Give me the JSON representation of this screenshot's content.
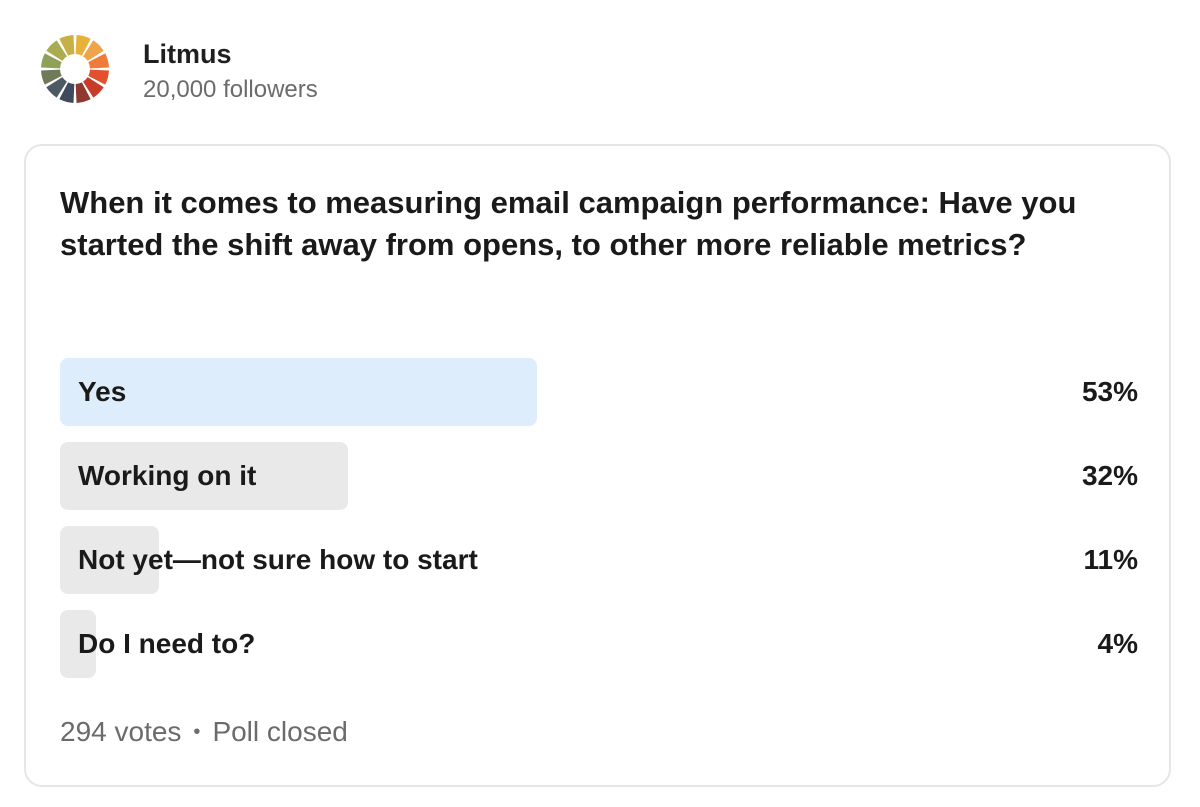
{
  "author": {
    "name": "Litmus",
    "followers": "20,000 followers",
    "logo_icon": "litmus-color-wheel-logo",
    "logo_colors": [
      "#e8b23a",
      "#f0a44a",
      "#ee7a3b",
      "#e3502e",
      "#c83a2a",
      "#8e3a31",
      "#3f4a5c",
      "#4e5a63",
      "#6e7a58",
      "#8fa05a",
      "#a9ad4f",
      "#c7b046"
    ]
  },
  "poll": {
    "question": "When it comes to measuring email campaign performance: Have you started the shift away from opens, to other more reliable metrics?",
    "options": [
      {
        "label": "Yes",
        "percent_label": "53%",
        "fraction": 0.53,
        "selected": true
      },
      {
        "label": "Working on it",
        "percent_label": "32%",
        "fraction": 0.32,
        "selected": false
      },
      {
        "label": "Not yet—not sure how to start",
        "percent_label": "11%",
        "fraction": 0.11,
        "selected": false
      },
      {
        "label": "Do I need to?",
        "percent_label": "4%",
        "fraction": 0.04,
        "selected": false
      }
    ],
    "votes": "294 votes",
    "separator": "•",
    "status": "Poll closed",
    "colors": {
      "selected_bar": "#deedfb",
      "bar": "#e9e9e9"
    }
  }
}
